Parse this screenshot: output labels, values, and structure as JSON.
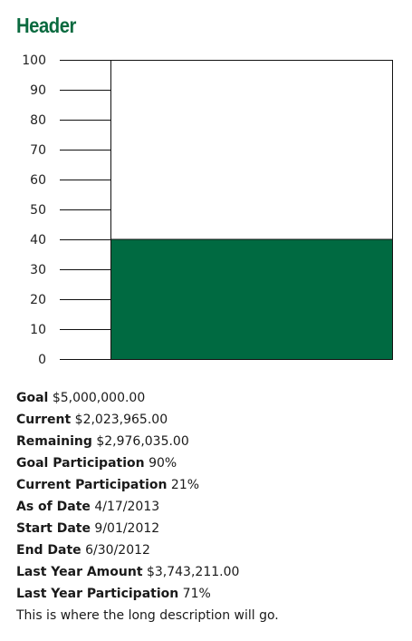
{
  "header": {
    "title": "Header"
  },
  "chart_data": {
    "type": "bar",
    "categories": [
      ""
    ],
    "values": [
      40
    ],
    "ylim": [
      0,
      100
    ],
    "ticks": [
      0,
      10,
      20,
      30,
      40,
      50,
      60,
      70,
      80,
      90,
      100
    ],
    "tick_labels": [
      "0",
      "10",
      "20",
      "30",
      "40",
      "50",
      "60",
      "70",
      "80",
      "90",
      "100"
    ],
    "fill_color": "#006a41",
    "grid": false
  },
  "details": [
    {
      "label": "Goal",
      "value": "$5,000,000.00"
    },
    {
      "label": "Current",
      "value": "$2,023,965.00"
    },
    {
      "label": "Remaining",
      "value": "$2,976,035.00"
    },
    {
      "label": "Goal Participation",
      "value": "90%"
    },
    {
      "label": "Current Participation",
      "value": "21%"
    },
    {
      "label": "As of Date",
      "value": "4/17/2013"
    },
    {
      "label": "Start Date",
      "value": "9/01/2012"
    },
    {
      "label": "End Date",
      "value": "6/30/2012"
    },
    {
      "label": "Last Year Amount",
      "value": "$3,743,211.00"
    },
    {
      "label": "Last Year Participation",
      "value": "71%"
    }
  ],
  "description": "This is where the long description will go."
}
